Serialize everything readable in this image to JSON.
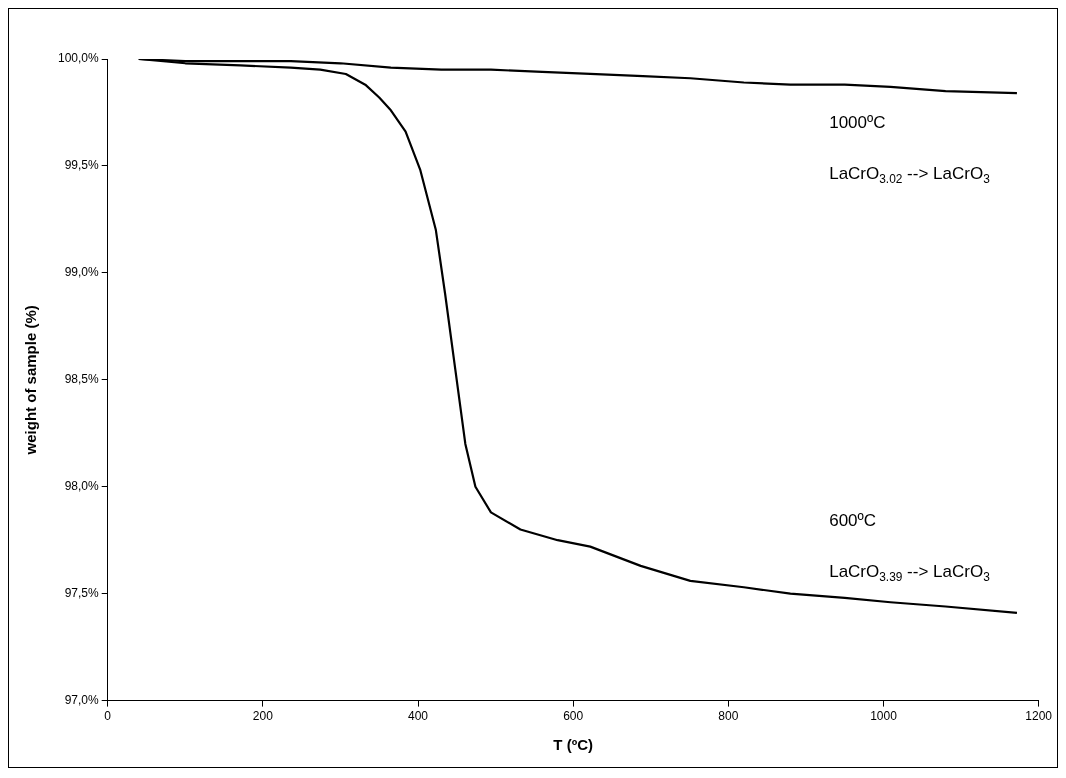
{
  "chart_data": {
    "type": "line",
    "xlabel": "T (ºC)",
    "ylabel": "weight of sample (%)",
    "series": [
      {
        "color": "#000000",
        "x": [
          40,
          100,
          171,
          236,
          300,
          365,
          430,
          494,
          560,
          622,
          690,
          751,
          820,
          880,
          950,
          1009,
          1080,
          1172
        ],
        "values": [
          100.0,
          99.99,
          99.99,
          99.99,
          99.98,
          99.96,
          99.95,
          99.95,
          99.94,
          99.93,
          99.92,
          99.91,
          99.89,
          99.88,
          99.88,
          99.87,
          99.85,
          99.84
        ]
      },
      {
        "color": "#000000",
        "x": [
          40,
          100,
          171,
          236,
          274,
          307,
          332,
          350,
          365,
          384,
          403,
          423,
          435,
          448,
          461,
          474,
          494,
          532,
          580,
          622,
          687,
          751,
          820,
          880,
          950,
          1009,
          1080,
          1172
        ],
        "values": [
          100.0,
          99.98,
          99.97,
          99.96,
          99.95,
          99.93,
          99.88,
          99.82,
          99.76,
          99.66,
          99.48,
          99.2,
          98.9,
          98.55,
          98.2,
          98.0,
          97.88,
          97.8,
          97.75,
          97.72,
          97.63,
          97.56,
          97.53,
          97.5,
          97.48,
          97.46,
          97.44,
          97.41
        ]
      }
    ],
    "annotations": [
      "1000ºC",
      "LaCrO$_{3.02}$ --> LaCrO$_{3}$",
      "600ºC",
      "LaCrO$_{3.39}$ --> LaCrO$_{3}$"
    ],
    "xlim": [
      0,
      1200
    ],
    "xticks": [
      0,
      200,
      400,
      600,
      800,
      1000,
      1200
    ],
    "ylim": [
      97,
      100
    ],
    "yticks": [
      {
        "value": 97,
        "label": "97,0%"
      },
      {
        "value": 97.5,
        "label": "97,5%"
      },
      {
        "value": 98,
        "label": "98,0%"
      },
      {
        "value": 98.5,
        "label": "98,5%"
      },
      {
        "value": 99,
        "label": "99,0%"
      },
      {
        "value": 99.5,
        "label": "99,5%"
      },
      {
        "value": 100,
        "label": "100,0%"
      }
    ],
    "grid": false,
    "legend": false,
    "marker": "none",
    "line_style": "solid"
  }
}
